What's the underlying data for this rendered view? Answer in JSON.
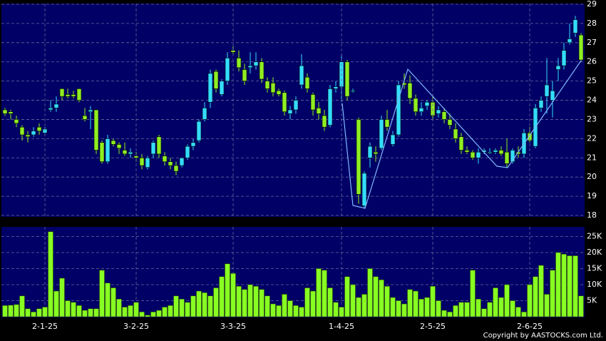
{
  "chart_data": [
    {
      "type": "candlestick",
      "up_color": "#33ddff",
      "down_color": "#8fee22",
      "open": [
        23.5,
        23.4,
        23.0,
        22.6,
        22.2,
        22.2,
        22.6,
        22.3,
        23.5,
        23.6,
        24.6,
        24.3,
        24.3,
        24.6,
        23.2,
        23.4,
        23.5,
        21.8,
        20.8,
        21.9,
        21.7,
        21.4,
        21.2,
        21.1,
        21.0,
        20.5,
        21.2,
        22.1,
        21.1,
        20.8,
        20.6,
        20.6,
        21.0,
        21.6,
        21.9,
        23.0,
        23.9,
        25.5,
        24.3,
        25.0,
        26.6,
        26.2,
        25.6,
        25.7,
        25.8,
        26.0,
        25.0,
        24.9,
        24.5,
        24.4,
        23.3,
        23.5,
        24.8,
        25.2,
        24.3,
        23.6,
        23.2,
        22.7,
        24.6,
        24.7,
        26.0,
        24.5,
        23.0,
        18.5,
        21.0,
        21.3,
        21.5,
        23.0,
        21.7,
        22.2,
        24.9,
        24.9,
        24.1,
        23.4,
        23.7,
        23.9,
        23.3,
        23.4,
        23.0,
        22.5,
        22.1,
        21.4,
        21.3,
        21.0,
        21.3,
        21.3,
        21.3,
        21.4,
        21.3,
        20.8,
        21.3,
        21.2,
        22.3,
        21.6,
        23.6,
        24.2,
        24.0,
        25.6,
        25.8,
        27.0,
        27.5,
        27.4
      ],
      "high": [
        23.6,
        23.5,
        23.2,
        22.7,
        22.4,
        22.6,
        22.8,
        22.6,
        24.0,
        24.2,
        24.6,
        24.6,
        24.5,
        24.6,
        23.6,
        23.7,
        23.5,
        21.9,
        22.2,
        22.0,
        21.8,
        21.8,
        21.5,
        21.3,
        21.2,
        21.1,
        21.9,
        22.2,
        21.3,
        21.0,
        20.8,
        21.0,
        21.7,
        22.0,
        23.0,
        23.9,
        25.6,
        25.6,
        25.1,
        26.5,
        26.8,
        26.6,
        25.9,
        26.5,
        26.5,
        26.2,
        25.2,
        25.2,
        24.6,
        24.5,
        23.7,
        24.2,
        26.4,
        25.4,
        24.4,
        23.9,
        23.5,
        24.8,
        25.0,
        26.4,
        26.1,
        24.6,
        23.1,
        20.3,
        21.8,
        21.6,
        23.2,
        23.5,
        22.4,
        25.0,
        25.4,
        25.3,
        24.3,
        23.9,
        24.0,
        24.2,
        23.7,
        23.6,
        23.3,
        22.8,
        22.3,
        21.6,
        21.4,
        21.5,
        21.5,
        21.5,
        21.5,
        21.6,
        22.0,
        21.5,
        21.6,
        22.5,
        22.6,
        23.8,
        24.2,
        26.2,
        25.0,
        26.2,
        27.0,
        28.0,
        28.4,
        27.5
      ],
      "low": [
        23.2,
        23.0,
        22.6,
        21.9,
        21.8,
        22.1,
        22.2,
        22.2,
        23.4,
        23.4,
        24.0,
        24.1,
        24.1,
        23.9,
        22.9,
        22.5,
        21.2,
        20.7,
        20.7,
        21.6,
        21.2,
        21.1,
        21.0,
        20.8,
        20.4,
        20.4,
        21.0,
        21.0,
        20.6,
        20.4,
        20.1,
        20.5,
        20.9,
        21.4,
        21.8,
        22.9,
        23.6,
        24.4,
        24.2,
        24.8,
        26.4,
        25.5,
        24.8,
        25.4,
        25.6,
        24.9,
        24.4,
        24.2,
        24.2,
        23.2,
        23.0,
        23.3,
        24.6,
        24.4,
        23.2,
        23.0,
        22.4,
        22.6,
        24.4,
        23.9,
        24.0,
        24.4,
        18.6,
        18.4,
        20.5,
        20.8,
        21.4,
        22.4,
        21.6,
        22.1,
        24.6,
        23.8,
        23.2,
        23.2,
        23.5,
        23.0,
        23.1,
        22.8,
        22.5,
        21.8,
        21.2,
        21.2,
        20.9,
        20.7,
        21.2,
        21.2,
        21.2,
        21.1,
        20.5,
        20.7,
        21.0,
        21.0,
        21.8,
        21.5,
        23.4,
        23.3,
        23.1,
        25.0,
        25.6,
        26.9,
        27.3,
        26.0
      ],
      "close": [
        23.3,
        23.3,
        22.8,
        22.2,
        22.1,
        22.4,
        22.4,
        22.5,
        23.6,
        23.8,
        24.2,
        24.2,
        24.2,
        24.0,
        23.0,
        23.5,
        21.4,
        20.8,
        22.0,
        21.7,
        21.5,
        21.2,
        21.3,
        21.0,
        20.6,
        21.0,
        21.8,
        21.2,
        20.8,
        20.6,
        20.3,
        21.0,
        21.6,
        21.8,
        22.9,
        23.6,
        25.4,
        24.6,
        25.0,
        26.2,
        26.5,
        25.7,
        25.0,
        25.8,
        26.0,
        25.1,
        24.6,
        24.4,
        24.3,
        23.4,
        23.5,
        24.0,
        25.8,
        24.6,
        23.5,
        23.3,
        22.6,
        24.6,
        24.7,
        26.0,
        24.2,
        24.5,
        19.1,
        20.2,
        21.6,
        21.2,
        23.0,
        22.6,
        22.2,
        24.8,
        24.8,
        24.1,
        23.4,
        23.6,
        23.9,
        23.2,
        23.5,
        23.0,
        22.7,
        22.0,
        21.4,
        21.3,
        21.0,
        21.3,
        21.4,
        21.3,
        21.4,
        21.2,
        20.7,
        21.4,
        21.2,
        22.3,
        21.9,
        23.6,
        24.0,
        24.8,
        24.5,
        25.8,
        26.6,
        27.2,
        28.2,
        26.1
      ],
      "ylim": [
        18,
        29
      ],
      "yticks": [
        18,
        19,
        20,
        21,
        22,
        23,
        24,
        25,
        26,
        27,
        28,
        29
      ],
      "grid": true
    },
    {
      "type": "bar",
      "color": "#88ff22",
      "categories": [
        null,
        null,
        null,
        null,
        null,
        null,
        null,
        "2-1-25",
        null,
        null,
        null,
        null,
        null,
        null,
        null,
        null,
        null,
        null,
        null,
        null,
        null,
        null,
        null,
        "3-2-25",
        null,
        null,
        null,
        null,
        null,
        null,
        null,
        null,
        null,
        null,
        null,
        null,
        null,
        null,
        null,
        null,
        "3-3-25",
        null,
        null,
        null,
        null,
        null,
        null,
        null,
        null,
        null,
        null,
        null,
        null,
        null,
        null,
        null,
        null,
        null,
        null,
        "1-4-25",
        null,
        null,
        null,
        null,
        null,
        null,
        null,
        null,
        null,
        null,
        null,
        null,
        null,
        null,
        null,
        "2-5-25",
        null,
        null,
        null,
        null,
        null,
        null,
        null,
        null,
        null,
        null,
        null,
        null,
        null,
        null,
        null,
        null,
        "2-6-25",
        null,
        null,
        null,
        null,
        null,
        null,
        null,
        null,
        null
      ],
      "values": [
        3500,
        3600,
        3800,
        6500,
        2500,
        1500,
        2500,
        3000,
        26500,
        8000,
        12000,
        5000,
        4500,
        3500,
        2000,
        2500,
        2500,
        14500,
        10500,
        9000,
        5500,
        3000,
        3500,
        4500,
        1500,
        500,
        1500,
        2000,
        3000,
        3500,
        6500,
        5500,
        4500,
        6500,
        8000,
        7500,
        6500,
        9000,
        12500,
        16500,
        13500,
        9500,
        8500,
        10000,
        9500,
        8500,
        6500,
        4000,
        3500,
        7000,
        5000,
        3500,
        3000,
        9000,
        8000,
        15000,
        14500,
        9000,
        4500,
        3000,
        12500,
        10000,
        6000,
        7000,
        15000,
        12500,
        11500,
        9500,
        6000,
        5000,
        4000,
        8500,
        8000,
        5500,
        6000,
        9500,
        5000,
        2000,
        1500,
        3500,
        4500,
        4500,
        14500,
        5500,
        2500,
        4500,
        9000,
        6000,
        10000,
        5000,
        3000,
        1500,
        10000,
        12500,
        16000,
        7000,
        14500,
        20000,
        19500,
        19000,
        19000,
        6500
      ],
      "ylim": [
        0,
        28000
      ],
      "yticks": [
        {
          "value": 5000,
          "label": "5K"
        },
        {
          "value": 10000,
          "label": "10K"
        },
        {
          "value": 15000,
          "label": "15K"
        },
        {
          "value": 20000,
          "label": "20K"
        },
        {
          "value": 25000,
          "label": "25K"
        }
      ],
      "grid": true
    }
  ],
  "copyright": "Copyright by AASTOCKS.com Ltd."
}
